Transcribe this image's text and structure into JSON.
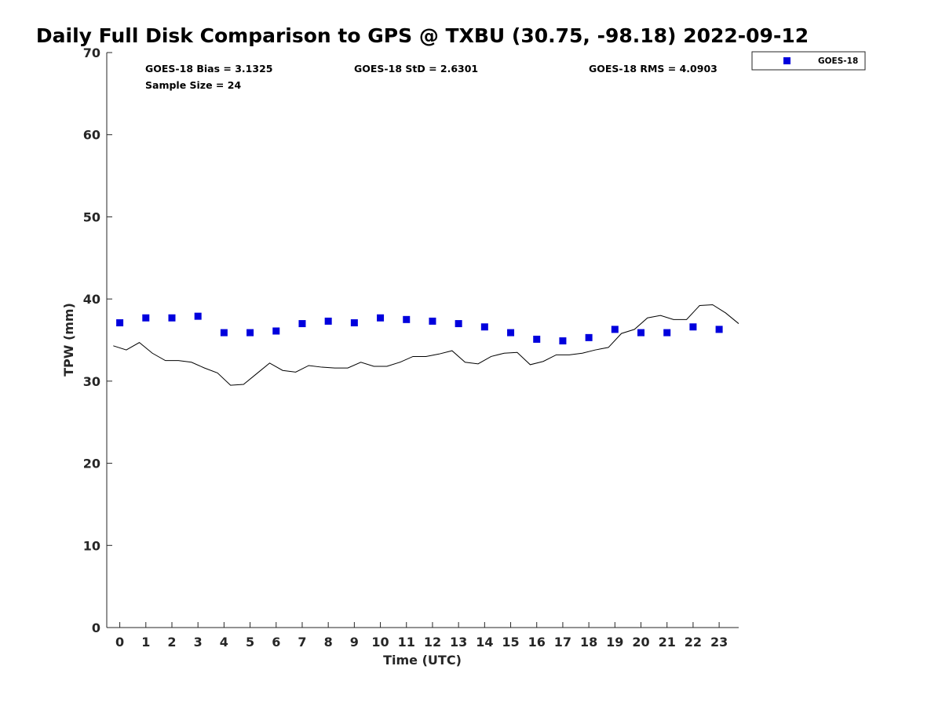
{
  "chart_data": {
    "type": "scatter",
    "title": "Daily Full Disk Comparison to GPS @ TXBU (30.75, -98.18) 2022-09-12",
    "xlabel": "Time (UTC)",
    "ylabel": "TPW (mm)",
    "xlim": [
      -0.5,
      23.75
    ],
    "ylim": [
      0,
      70
    ],
    "xticks": [
      "0",
      "1",
      "2",
      "3",
      "4",
      "5",
      "6",
      "7",
      "8",
      "9",
      "10",
      "11",
      "12",
      "13",
      "14",
      "15",
      "16",
      "17",
      "18",
      "19",
      "20",
      "21",
      "22",
      "23"
    ],
    "yticks": [
      "0",
      "10",
      "20",
      "30",
      "40",
      "50",
      "60",
      "70"
    ],
    "grid": false,
    "legend": {
      "position": "top-right-outside",
      "entries": [
        "GOES-18"
      ]
    },
    "stats": {
      "bias": "GOES-18 Bias = 3.1325",
      "std": "GOES-18 StD = 2.6301",
      "rms": "GOES-18 RMS = 4.0903",
      "sample": "Sample Size = 24"
    },
    "series": [
      {
        "name": "GOES-18",
        "kind": "scatter",
        "marker": "square",
        "color": "#0000dd",
        "x": [
          0,
          1,
          2,
          3,
          4,
          5,
          6,
          7,
          8,
          9,
          10,
          11,
          12,
          13,
          14,
          15,
          16,
          17,
          18,
          19,
          20,
          21,
          22,
          23
        ],
        "y": [
          37.1,
          37.7,
          37.7,
          37.9,
          35.9,
          35.9,
          36.1,
          37.0,
          37.3,
          37.1,
          37.7,
          37.5,
          37.3,
          37.0,
          36.6,
          35.9,
          35.1,
          34.9,
          35.3,
          36.3,
          35.9,
          35.9,
          36.6,
          36.3
        ]
      },
      {
        "kind": "line",
        "color": "#000000",
        "x": [
          -0.25,
          0.25,
          0.75,
          1.25,
          1.75,
          2.25,
          2.75,
          3.25,
          3.75,
          4.25,
          4.75,
          5.25,
          5.75,
          6.25,
          6.75,
          7.25,
          7.75,
          8.25,
          8.75,
          9.25,
          9.75,
          10.25,
          10.75,
          11.25,
          11.75,
          12.25,
          12.75,
          13.25,
          13.75,
          14.25,
          14.75,
          15.25,
          15.75,
          16.25,
          16.75,
          17.25,
          17.75,
          18.25,
          18.75,
          19.25,
          19.75,
          20.25,
          20.75,
          21.25,
          21.75,
          22.25,
          22.75,
          23.25,
          23.75
        ],
        "y": [
          34.3,
          33.8,
          34.7,
          33.4,
          32.5,
          32.5,
          32.3,
          31.6,
          31.0,
          29.5,
          29.6,
          30.9,
          32.2,
          31.3,
          31.1,
          31.9,
          31.7,
          31.6,
          31.6,
          32.3,
          31.8,
          31.8,
          32.3,
          33.0,
          33.0,
          33.3,
          33.7,
          32.3,
          32.1,
          33.0,
          33.4,
          33.5,
          32.0,
          32.4,
          33.2,
          33.2,
          33.4,
          33.8,
          34.1,
          35.8,
          36.3,
          37.7,
          38.0,
          37.5,
          37.5,
          39.2,
          39.3,
          38.3,
          37.0
        ]
      }
    ]
  }
}
